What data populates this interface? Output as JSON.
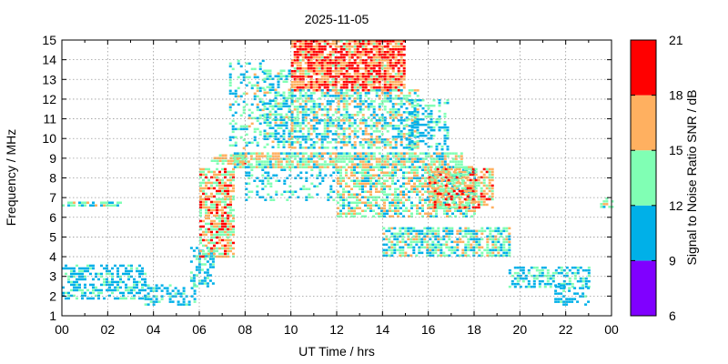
{
  "chart_data": {
    "type": "heatmap",
    "title": "2025-11-05",
    "xlabel": "UT Time / hrs",
    "ylabel": "Frequency / MHz",
    "xlim": [
      0,
      24
    ],
    "ylim": [
      1,
      15
    ],
    "x_ticks": [
      "00",
      "02",
      "04",
      "06",
      "08",
      "10",
      "12",
      "14",
      "16",
      "18",
      "20",
      "22",
      "00"
    ],
    "y_ticks": [
      "1",
      "2",
      "3",
      "4",
      "5",
      "6",
      "7",
      "8",
      "9",
      "10",
      "11",
      "12",
      "13",
      "14",
      "15"
    ],
    "grid": true,
    "colorbar": {
      "label": "Signal to Noise Ratio SNR / dB",
      "ticks": [
        "6",
        "9",
        "12",
        "15",
        "18",
        "21"
      ],
      "range": [
        6,
        21
      ],
      "bands": [
        {
          "from": 6,
          "to": 9,
          "color": "#8000ff"
        },
        {
          "from": 9,
          "to": 12,
          "color": "#00b0e8"
        },
        {
          "from": 12,
          "to": 15,
          "color": "#80ffb4"
        },
        {
          "from": 15,
          "to": 18,
          "color": "#ffb060"
        },
        {
          "from": 18,
          "to": 21,
          "color": "#ff0000"
        }
      ]
    },
    "regions": [
      {
        "x": [
          0.0,
          3.6
        ],
        "y": [
          1.8,
          3.6
        ],
        "snr": 10.5,
        "density": 0.55
      },
      {
        "x": [
          3.6,
          5.8
        ],
        "y": [
          1.5,
          2.6
        ],
        "snr": 10.5,
        "density": 0.45
      },
      {
        "x": [
          0.0,
          2.6
        ],
        "y": [
          6.6,
          6.8
        ],
        "snr": 13,
        "density": 0.7
      },
      {
        "x": [
          5.6,
          6.6
        ],
        "y": [
          2.5,
          4.5
        ],
        "snr": 11,
        "density": 0.5
      },
      {
        "x": [
          6.0,
          7.5
        ],
        "y": [
          4.0,
          8.5
        ],
        "snr": 16,
        "density": 0.75
      },
      {
        "x": [
          6.5,
          8.0
        ],
        "y": [
          8.7,
          9.2
        ],
        "snr": 15,
        "density": 0.7
      },
      {
        "x": [
          7.3,
          8.8
        ],
        "y": [
          9.5,
          14.0
        ],
        "snr": 12,
        "density": 0.35
      },
      {
        "x": [
          8.8,
          10.0
        ],
        "y": [
          9.5,
          13.5
        ],
        "snr": 12,
        "density": 0.6
      },
      {
        "x": [
          10.0,
          15.0
        ],
        "y": [
          12.5,
          15.0
        ],
        "snr": 18,
        "density": 0.85
      },
      {
        "x": [
          10.0,
          15.5
        ],
        "y": [
          9.5,
          12.5
        ],
        "snr": 13,
        "density": 0.6
      },
      {
        "x": [
          15.0,
          16.8
        ],
        "y": [
          9.5,
          12.0
        ],
        "snr": 11,
        "density": 0.4
      },
      {
        "x": [
          7.5,
          17.5
        ],
        "y": [
          8.6,
          9.3
        ],
        "snr": 14,
        "density": 0.8
      },
      {
        "x": [
          8.0,
          12.0
        ],
        "y": [
          6.8,
          8.6
        ],
        "snr": 11,
        "density": 0.3
      },
      {
        "x": [
          12.0,
          18.0
        ],
        "y": [
          6.0,
          8.6
        ],
        "snr": 14,
        "density": 0.65
      },
      {
        "x": [
          16.0,
          18.8
        ],
        "y": [
          6.5,
          8.5
        ],
        "snr": 16,
        "density": 0.7
      },
      {
        "x": [
          14.0,
          19.5
        ],
        "y": [
          4.0,
          5.5
        ],
        "snr": 13,
        "density": 0.7
      },
      {
        "x": [
          19.5,
          23.0
        ],
        "y": [
          2.5,
          3.5
        ],
        "snr": 11,
        "density": 0.55
      },
      {
        "x": [
          21.5,
          23.0
        ],
        "y": [
          1.6,
          2.6
        ],
        "snr": 11,
        "density": 0.45
      },
      {
        "x": [
          23.5,
          24.0
        ],
        "y": [
          6.5,
          7.0
        ],
        "snr": 14,
        "density": 0.6
      }
    ]
  }
}
